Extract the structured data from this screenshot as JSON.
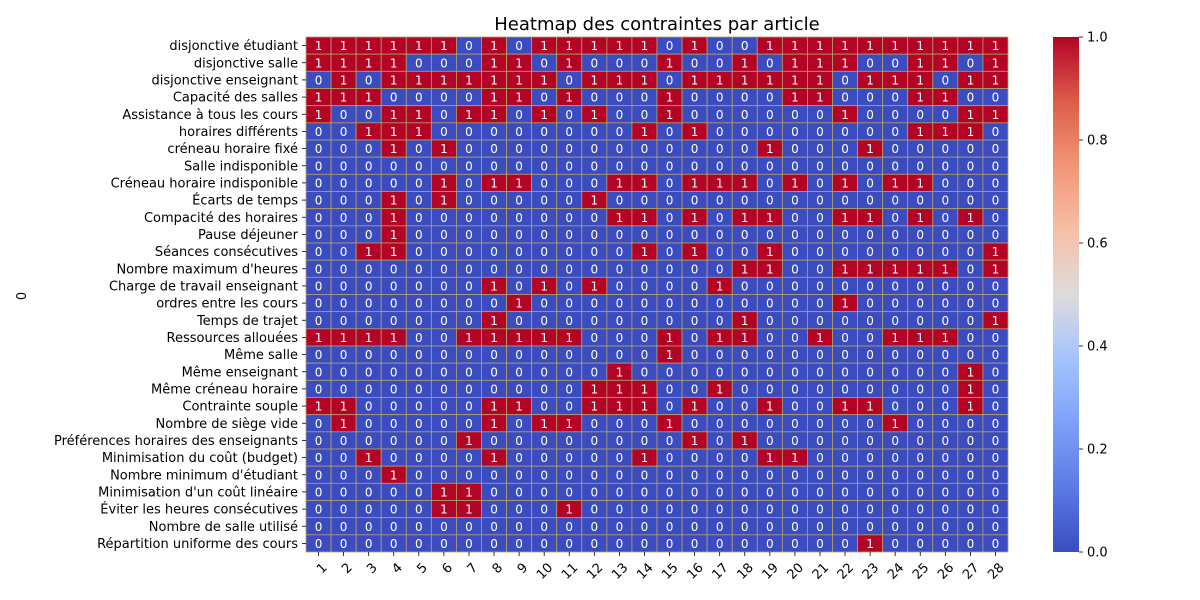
{
  "chart_data": {
    "type": "heatmap",
    "title": "Heatmap des contraintes par article",
    "ylabel": "0",
    "xlabel": "",
    "colormap": "coolwarm",
    "color_low": "#3b4cc0",
    "color_mid": "#dddddd",
    "color_high": "#b40426",
    "grid_color": "#b5a06a",
    "vmin": 0,
    "vmax": 1,
    "colorbar_ticks": [
      "0.0",
      "0.2",
      "0.4",
      "0.6",
      "0.8",
      "1.0"
    ],
    "columns": [
      "1",
      "2",
      "3",
      "4",
      "5",
      "6",
      "7",
      "8",
      "9",
      "10",
      "11",
      "12",
      "13",
      "14",
      "15",
      "16",
      "17",
      "18",
      "19",
      "20",
      "21",
      "22",
      "23",
      "24",
      "25",
      "26",
      "27",
      "28"
    ],
    "rows": [
      "disjonctive étudiant",
      "disjonctive salle",
      "disjonctive enseignant",
      "Capacité des salles",
      "Assistance à tous les cours",
      "horaires différents",
      "créneau horaire fixé",
      "Salle indisponible",
      "Créneau horaire indisponible",
      "Écarts de temps",
      "Compacité des horaires",
      "Pause déjeuner ",
      "Séances consécutives",
      "Nombre maximum d'heures",
      "Charge de travail enseignant",
      "ordres entre les cours",
      "Temps de trajet",
      "Ressources allouées",
      "Même salle ",
      "Même enseignant ",
      "Même créneau horaire",
      "Contrainte souple",
      "Nombre de siège vide",
      "Préférences horaires des enseignants",
      "Minimisation du coût (budget)",
      "Nombre minimum d'étudiant",
      "Minimisation d'un coût linéaire",
      "Éviter les heures consécutives",
      "Nombre de salle utilisé",
      "Répartition uniforme des cours"
    ],
    "values": [
      [
        1,
        1,
        1,
        1,
        1,
        1,
        0,
        1,
        0,
        1,
        1,
        1,
        1,
        1,
        0,
        1,
        0,
        0,
        1,
        1,
        1,
        1,
        1,
        1,
        1,
        1,
        1,
        1
      ],
      [
        1,
        1,
        1,
        1,
        0,
        0,
        0,
        1,
        1,
        0,
        1,
        0,
        0,
        0,
        1,
        0,
        0,
        1,
        0,
        1,
        1,
        1,
        0,
        0,
        1,
        1,
        0,
        1
      ],
      [
        0,
        1,
        0,
        1,
        1,
        1,
        1,
        1,
        1,
        1,
        0,
        1,
        1,
        1,
        0,
        1,
        1,
        1,
        1,
        1,
        1,
        0,
        1,
        1,
        1,
        0,
        1,
        1
      ],
      [
        1,
        1,
        1,
        0,
        0,
        0,
        0,
        1,
        1,
        0,
        1,
        0,
        0,
        0,
        1,
        0,
        0,
        0,
        0,
        1,
        1,
        0,
        0,
        0,
        1,
        1,
        0,
        0
      ],
      [
        1,
        0,
        0,
        1,
        1,
        0,
        1,
        1,
        0,
        1,
        0,
        1,
        0,
        0,
        1,
        0,
        0,
        0,
        0,
        0,
        0,
        1,
        0,
        0,
        0,
        0,
        1,
        1
      ],
      [
        0,
        0,
        1,
        1,
        1,
        0,
        0,
        0,
        0,
        0,
        0,
        0,
        0,
        1,
        0,
        1,
        0,
        0,
        0,
        0,
        0,
        0,
        0,
        0,
        1,
        1,
        1,
        0
      ],
      [
        0,
        0,
        0,
        1,
        0,
        1,
        0,
        0,
        0,
        0,
        0,
        0,
        0,
        0,
        0,
        0,
        0,
        0,
        1,
        0,
        0,
        0,
        1,
        0,
        0,
        0,
        0,
        0
      ],
      [
        0,
        0,
        0,
        0,
        0,
        0,
        0,
        0,
        0,
        0,
        0,
        0,
        0,
        0,
        0,
        0,
        0,
        0,
        0,
        0,
        0,
        0,
        0,
        0,
        0,
        0,
        0,
        0
      ],
      [
        0,
        0,
        0,
        0,
        0,
        1,
        0,
        1,
        1,
        0,
        0,
        0,
        1,
        1,
        0,
        1,
        1,
        1,
        0,
        1,
        0,
        1,
        0,
        1,
        1,
        0,
        0,
        0
      ],
      [
        0,
        0,
        0,
        1,
        0,
        1,
        0,
        0,
        0,
        0,
        0,
        1,
        0,
        0,
        0,
        0,
        0,
        0,
        0,
        0,
        0,
        0,
        0,
        0,
        0,
        0,
        0,
        0
      ],
      [
        0,
        0,
        0,
        1,
        0,
        0,
        0,
        0,
        0,
        0,
        0,
        0,
        1,
        1,
        0,
        1,
        0,
        1,
        1,
        0,
        0,
        1,
        1,
        0,
        1,
        0,
        1,
        0
      ],
      [
        0,
        0,
        0,
        1,
        0,
        0,
        0,
        0,
        0,
        0,
        0,
        0,
        0,
        0,
        0,
        0,
        0,
        0,
        0,
        0,
        0,
        0,
        0,
        0,
        0,
        0,
        0,
        0
      ],
      [
        0,
        0,
        1,
        1,
        0,
        0,
        0,
        0,
        0,
        0,
        0,
        0,
        0,
        1,
        0,
        1,
        0,
        0,
        1,
        0,
        0,
        0,
        0,
        0,
        0,
        0,
        0,
        1
      ],
      [
        0,
        0,
        0,
        0,
        0,
        0,
        0,
        0,
        0,
        0,
        0,
        0,
        0,
        0,
        0,
        0,
        0,
        1,
        1,
        0,
        0,
        1,
        1,
        1,
        1,
        1,
        0,
        1
      ],
      [
        0,
        0,
        0,
        0,
        0,
        0,
        0,
        1,
        0,
        1,
        0,
        1,
        0,
        0,
        0,
        0,
        1,
        0,
        0,
        0,
        0,
        0,
        0,
        0,
        0,
        0,
        0,
        0
      ],
      [
        0,
        0,
        0,
        0,
        0,
        0,
        0,
        0,
        1,
        0,
        0,
        0,
        0,
        0,
        0,
        0,
        0,
        0,
        0,
        0,
        0,
        1,
        0,
        0,
        0,
        0,
        0,
        0
      ],
      [
        0,
        0,
        0,
        0,
        0,
        0,
        0,
        1,
        0,
        0,
        0,
        0,
        0,
        0,
        0,
        0,
        0,
        1,
        0,
        0,
        0,
        0,
        0,
        0,
        0,
        0,
        0,
        1
      ],
      [
        1,
        1,
        1,
        1,
        0,
        0,
        1,
        1,
        1,
        1,
        1,
        0,
        0,
        0,
        1,
        0,
        1,
        1,
        0,
        0,
        1,
        0,
        0,
        1,
        1,
        1,
        0,
        0
      ],
      [
        0,
        0,
        0,
        0,
        0,
        0,
        0,
        0,
        0,
        0,
        0,
        0,
        0,
        0,
        1,
        0,
        0,
        0,
        0,
        0,
        0,
        0,
        0,
        0,
        0,
        0,
        0,
        0
      ],
      [
        0,
        0,
        0,
        0,
        0,
        0,
        0,
        0,
        0,
        0,
        0,
        0,
        1,
        0,
        0,
        0,
        0,
        0,
        0,
        0,
        0,
        0,
        0,
        0,
        0,
        0,
        1,
        0
      ],
      [
        0,
        0,
        0,
        0,
        0,
        0,
        0,
        0,
        0,
        0,
        0,
        1,
        1,
        1,
        0,
        0,
        1,
        0,
        0,
        0,
        0,
        0,
        0,
        0,
        0,
        0,
        1,
        0
      ],
      [
        1,
        1,
        0,
        0,
        0,
        0,
        0,
        1,
        1,
        0,
        0,
        1,
        1,
        1,
        0,
        1,
        0,
        0,
        1,
        0,
        0,
        1,
        1,
        0,
        0,
        0,
        1,
        0
      ],
      [
        0,
        1,
        0,
        0,
        0,
        0,
        0,
        1,
        0,
        1,
        1,
        0,
        0,
        0,
        1,
        0,
        0,
        0,
        0,
        0,
        0,
        0,
        0,
        1,
        0,
        0,
        0,
        0
      ],
      [
        0,
        0,
        0,
        0,
        0,
        0,
        1,
        0,
        0,
        0,
        0,
        0,
        0,
        0,
        0,
        1,
        0,
        1,
        0,
        0,
        0,
        0,
        0,
        0,
        0,
        0,
        0,
        0
      ],
      [
        0,
        0,
        1,
        0,
        0,
        0,
        0,
        1,
        0,
        0,
        0,
        0,
        0,
        1,
        0,
        0,
        0,
        0,
        1,
        1,
        0,
        0,
        0,
        0,
        0,
        0,
        0,
        0
      ],
      [
        0,
        0,
        0,
        1,
        0,
        0,
        0,
        0,
        0,
        0,
        0,
        0,
        0,
        0,
        0,
        0,
        0,
        0,
        0,
        0,
        0,
        0,
        0,
        0,
        0,
        0,
        0,
        0
      ],
      [
        0,
        0,
        0,
        0,
        0,
        1,
        1,
        0,
        0,
        0,
        0,
        0,
        0,
        0,
        0,
        0,
        0,
        0,
        0,
        0,
        0,
        0,
        0,
        0,
        0,
        0,
        0,
        0
      ],
      [
        0,
        0,
        0,
        0,
        0,
        1,
        1,
        0,
        0,
        0,
        1,
        0,
        0,
        0,
        0,
        0,
        0,
        0,
        0,
        0,
        0,
        0,
        0,
        0,
        0,
        0,
        0,
        0
      ],
      [
        0,
        0,
        0,
        0,
        0,
        0,
        0,
        0,
        0,
        0,
        0,
        0,
        0,
        0,
        0,
        0,
        0,
        0,
        0,
        0,
        0,
        0,
        0,
        0,
        0,
        0,
        0,
        0
      ],
      [
        0,
        0,
        0,
        0,
        0,
        0,
        0,
        0,
        0,
        0,
        0,
        0,
        0,
        0,
        0,
        0,
        0,
        0,
        0,
        0,
        0,
        0,
        1,
        0,
        0,
        0,
        0,
        0
      ]
    ]
  }
}
